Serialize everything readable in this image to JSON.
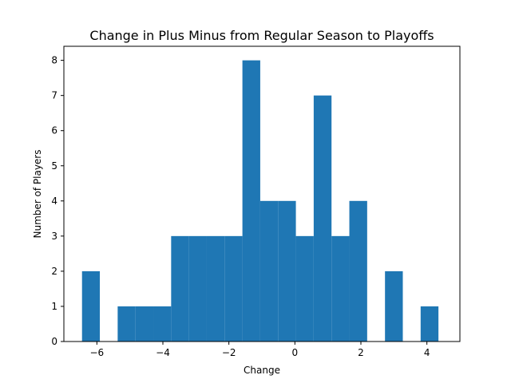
{
  "chart_data": {
    "type": "bar",
    "title": "Change in Plus Minus from Regular Season to Playoffs",
    "xlabel": "Change",
    "ylabel": "Number of Players",
    "xlim": [
      -7,
      5
    ],
    "ylim": [
      0,
      8.4
    ],
    "xticks": [
      -6,
      -4,
      -2,
      0,
      2,
      4
    ],
    "xtick_labels": [
      "−6",
      "−4",
      "−2",
      "0",
      "2",
      "4"
    ],
    "yticks": [
      0,
      1,
      2,
      3,
      4,
      5,
      6,
      7,
      8
    ],
    "ytick_labels": [
      "0",
      "1",
      "2",
      "3",
      "4",
      "5",
      "6",
      "7",
      "8"
    ],
    "bin_start": -6.45,
    "bin_width": 0.54,
    "counts": [
      2,
      0,
      1,
      1,
      1,
      3,
      3,
      3,
      3,
      8,
      4,
      4,
      3,
      7,
      3,
      4,
      0,
      2,
      0,
      1
    ],
    "bar_color": "#1f77b4",
    "grid": false
  }
}
